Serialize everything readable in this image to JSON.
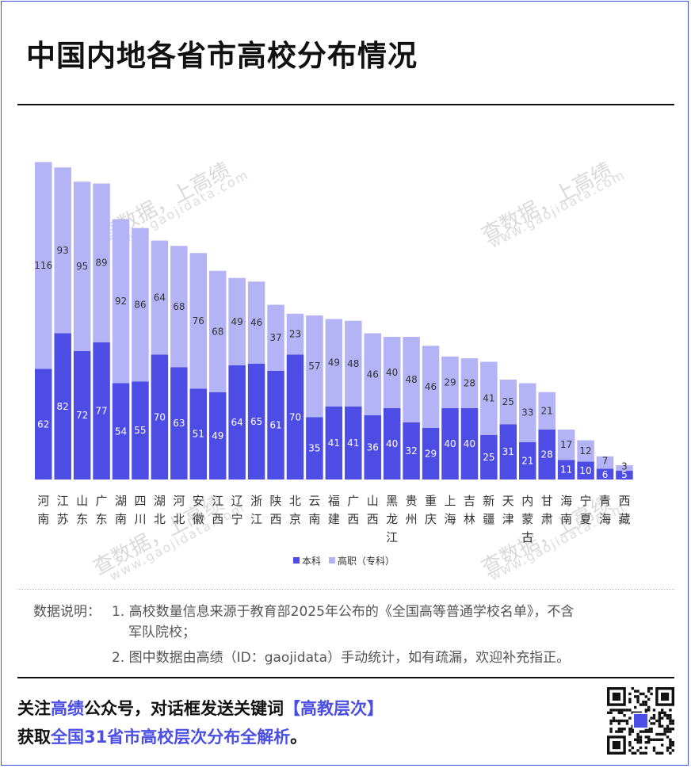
{
  "title": "中国内地各省市高校分布情况",
  "watermark": {
    "cn": "查数据，上高绩",
    "url": "www.gaojidata.com"
  },
  "colors": {
    "bachelor": "#4d4de6",
    "vocational": "#b3b3f5",
    "accent": "#4a4ee5",
    "frame": "#3d4fe0"
  },
  "chart_data": {
    "type": "bar",
    "stacked": true,
    "categories": [
      "河南",
      "江苏",
      "山东",
      "广东",
      "湖南",
      "四川",
      "湖北",
      "河北",
      "安徽",
      "江西",
      "辽宁",
      "浙江",
      "陕西",
      "北京",
      "云南",
      "福建",
      "广西",
      "山西",
      "黑龙江",
      "贵州",
      "重庆",
      "上海",
      "吉林",
      "新疆",
      "天津",
      "内蒙古",
      "甘肃",
      "海南",
      "宁夏",
      "青海",
      "西藏"
    ],
    "series": [
      {
        "name": "本科",
        "values": [
          62,
          82,
          72,
          77,
          54,
          55,
          70,
          63,
          51,
          49,
          64,
          65,
          61,
          70,
          35,
          41,
          41,
          36,
          40,
          32,
          29,
          40,
          40,
          25,
          31,
          21,
          28,
          11,
          10,
          6,
          5
        ]
      },
      {
        "name": "高职（专科）",
        "values": [
          116,
          93,
          95,
          89,
          92,
          86,
          64,
          68,
          76,
          68,
          49,
          46,
          37,
          23,
          57,
          49,
          48,
          46,
          40,
          48,
          46,
          29,
          28,
          41,
          25,
          33,
          21,
          17,
          12,
          7,
          3
        ]
      }
    ],
    "legend": "bottom-center",
    "grid": false
  },
  "notes": {
    "label": "数据说明：",
    "item1_line1": "1. 高校数量信息来源于教育部2025年公布的《全国高等普通学校名单》，不含",
    "item1_line2": "军队院校；",
    "item2": "2. 图中数据由高绩（ID：gaojidata）手动统计，如有疏漏，欢迎补充指正。"
  },
  "footer": {
    "l1_a": "关注",
    "l1_b": "高绩",
    "l1_c": "公众号，对话框发送关键词",
    "l1_d": "【高教层次】",
    "l2_a": "获取",
    "l2_b": "全国31省市高校层次分布全解析",
    "l2_c": "。"
  },
  "qr_icon": "qr-code-icon"
}
